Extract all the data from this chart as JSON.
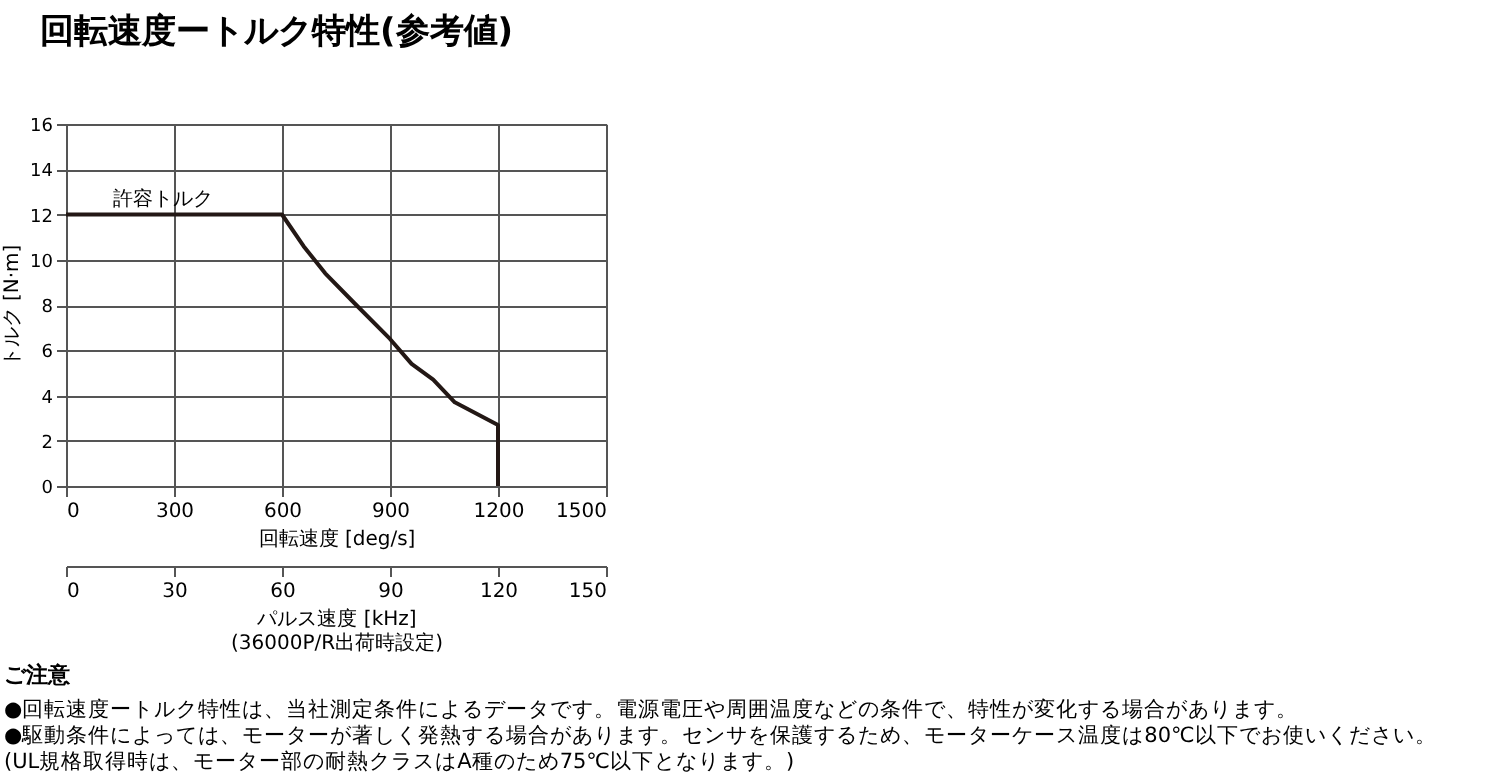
{
  "chart_data": {
    "type": "line",
    "title": "回転速度ートルク特性(参考値)",
    "xlabel": "回転速度 [deg/s]",
    "ylabel": "トルク [N·m]",
    "x2label": "パルス速度 [kHz]\n(36000P/R出荷時設定)",
    "xlim": [
      0,
      1500
    ],
    "xticks": [
      0,
      300,
      600,
      900,
      1200,
      1500
    ],
    "ylim": [
      0,
      16
    ],
    "yticks": [
      0,
      2,
      4,
      6,
      8,
      10,
      12,
      14,
      16
    ],
    "x2lim": [
      0,
      150
    ],
    "x2ticks": [
      0,
      30,
      60,
      90,
      120,
      150
    ],
    "grid": true,
    "marker": "none",
    "line_style": "solid",
    "series": [
      {
        "color": "#231815",
        "x": [
          0,
          600,
          660,
          720,
          800,
          900,
          960,
          1020,
          1080,
          1200,
          1200
        ],
        "values": [
          12,
          12,
          10.6,
          9.4,
          8.1,
          6.5,
          5.4,
          4.7,
          3.7,
          2.7,
          0
        ]
      }
    ],
    "annotations": [
      {
        "text": "許容トルク",
        "x": 130,
        "y": 12
      },
      "ご注意",
      "●回転速度ートルク特性は、当社測定条件によるデータです。電源電圧や周囲温度などの条件で、特性が変化する場合があります。",
      "●駆動条件によっては、モーターが著しく発熱する場合があります。センサを保護するため、モーターケース温度は80℃以下でお使いください。",
      "(UL規格取得時は、モーター部の耐熱クラスはA種のため75℃以下となります。)"
    ]
  }
}
